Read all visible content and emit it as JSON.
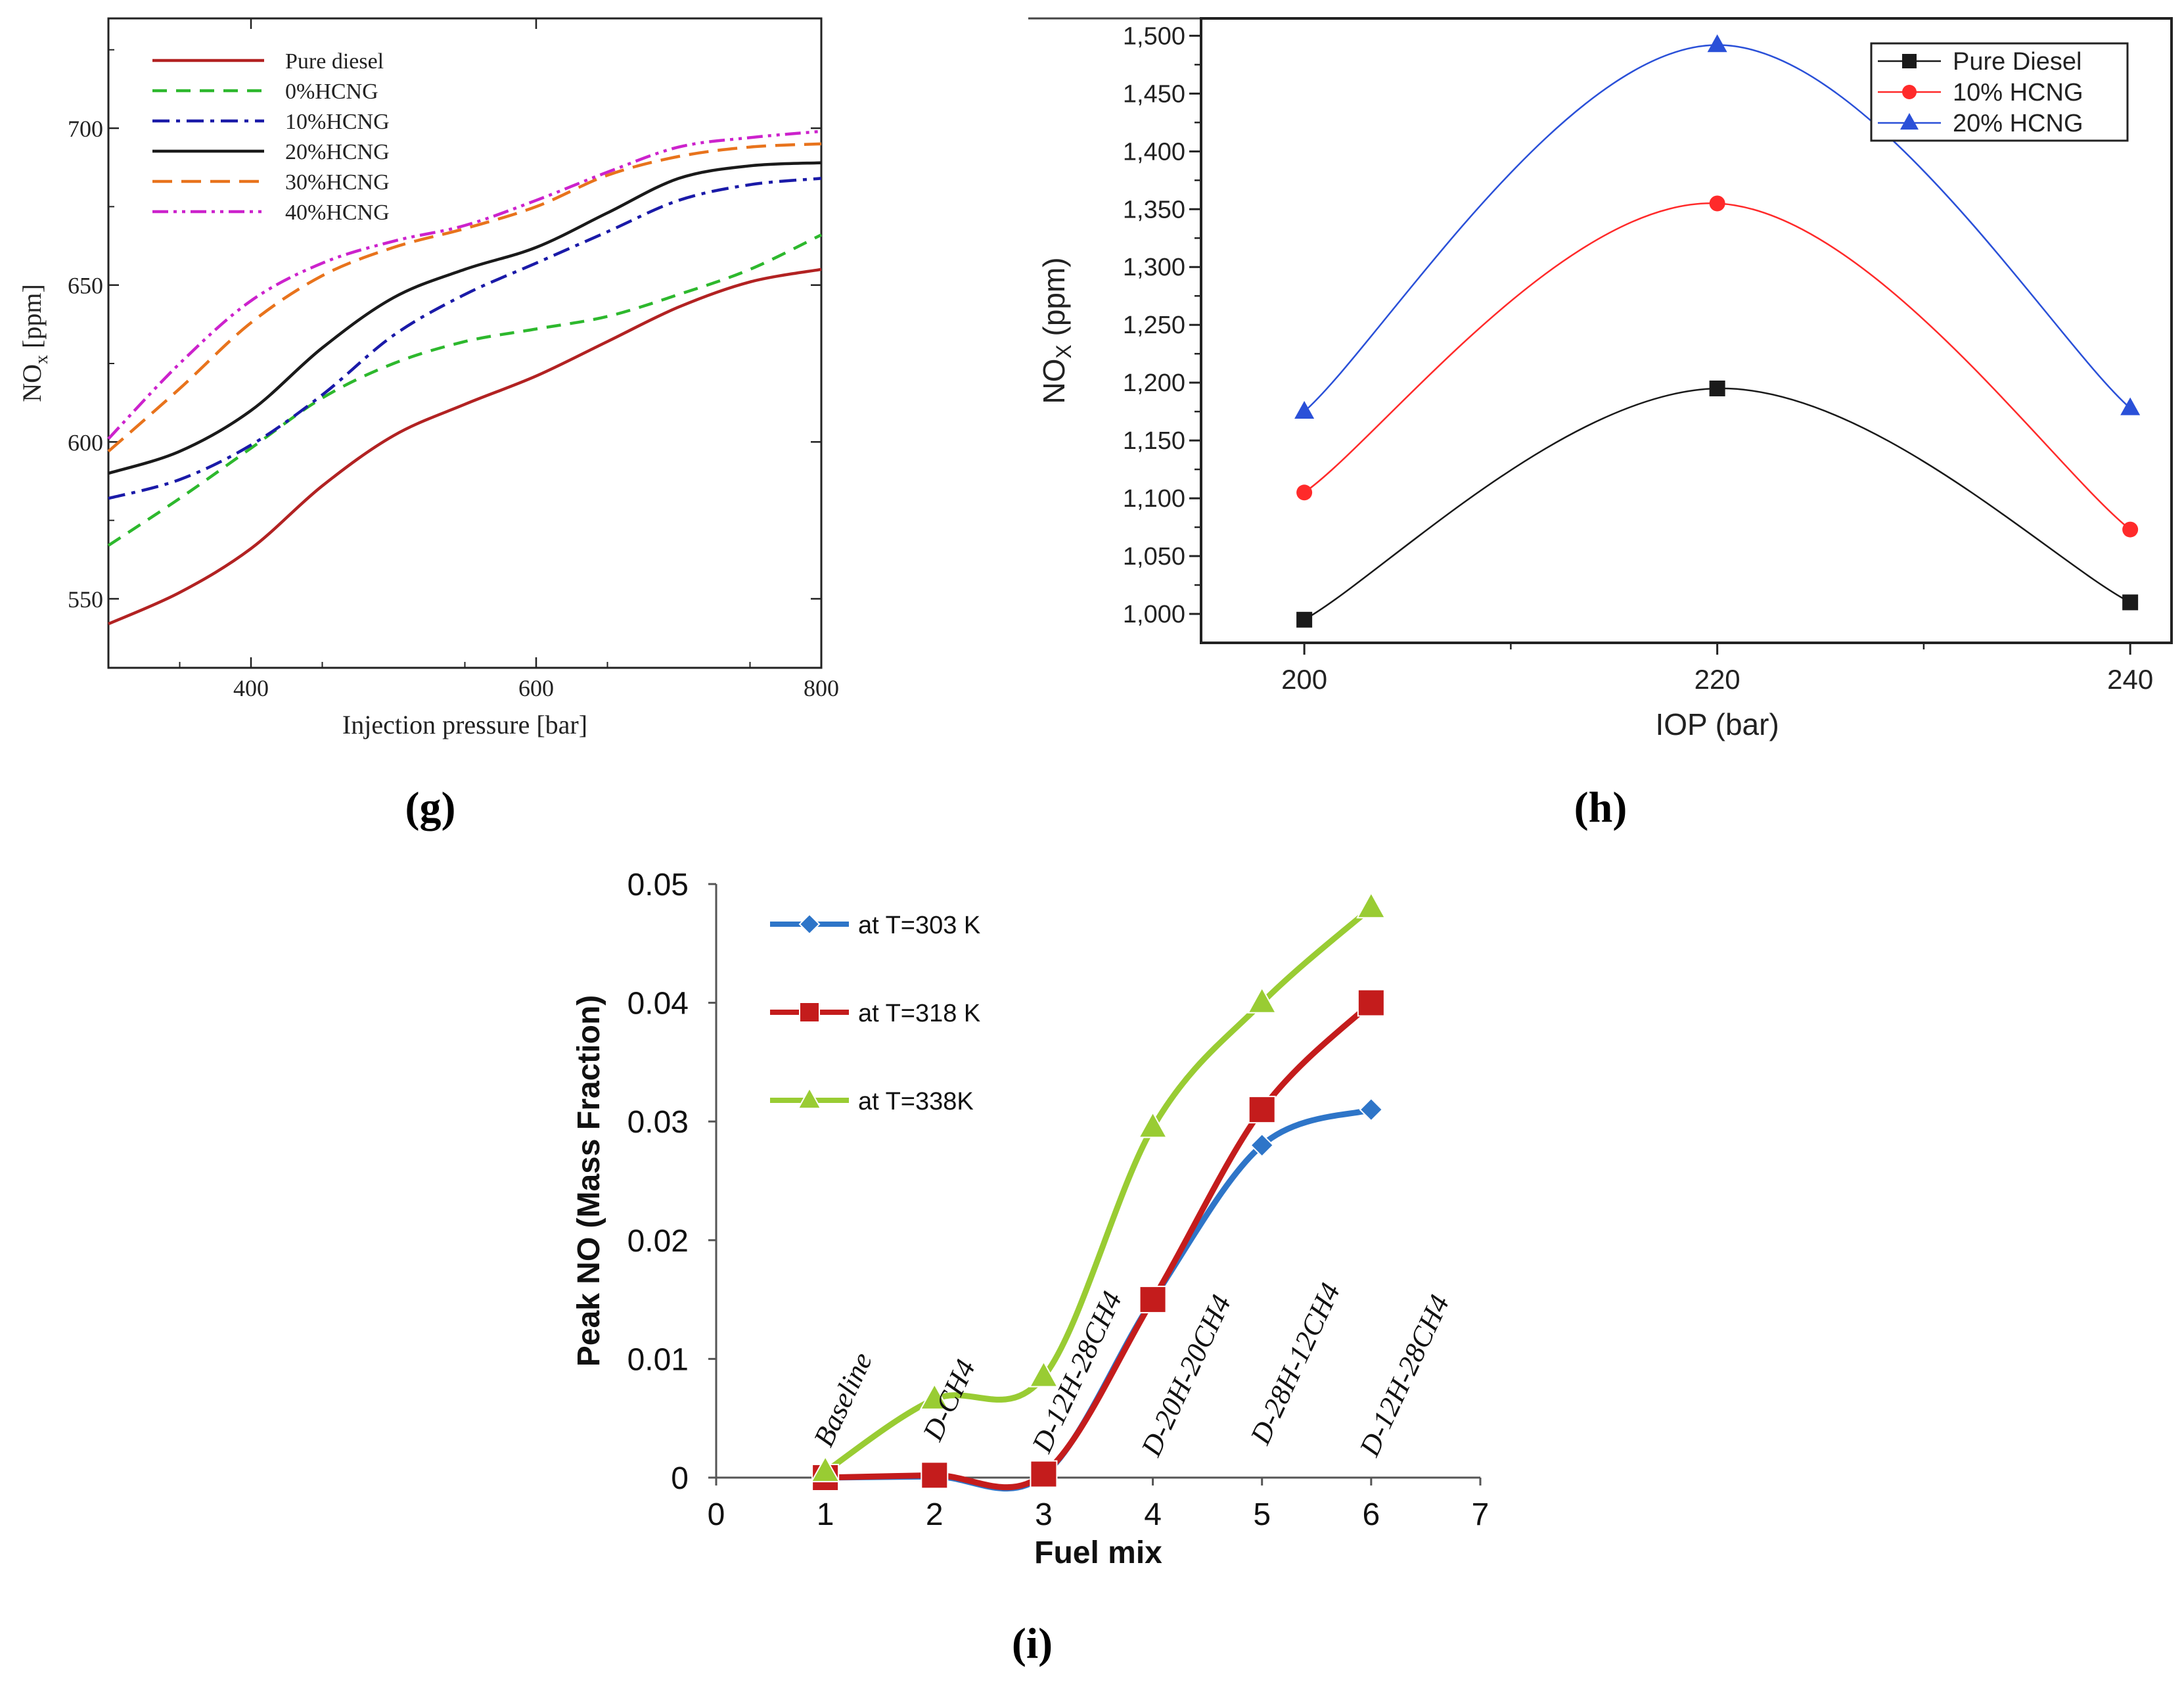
{
  "panel_labels": [
    "(g)",
    "(h)",
    "(i)"
  ],
  "chart_data": [
    {
      "type": "line",
      "panel": "(g)",
      "title": "",
      "xlabel": "Injection pressure [bar]",
      "ylabel": "NOx [ppm]",
      "ylabel_main": "NO",
      "ylabel_sub": "x",
      "ylabel_unit": " [ppm]",
      "xlim": [
        300,
        800
      ],
      "ylim": [
        528,
        735
      ],
      "xticks": [
        400,
        600,
        800
      ],
      "yticks": [
        550,
        600,
        650,
        700
      ],
      "legend_position": "top-left",
      "x": [
        300,
        350,
        400,
        450,
        500,
        550,
        600,
        650,
        700,
        750,
        800
      ],
      "series": [
        {
          "name": "Pure diesel",
          "color": "#b22222",
          "dash": "solid",
          "values": [
            542,
            552,
            566,
            586,
            602,
            612,
            621,
            632,
            643,
            651,
            655
          ]
        },
        {
          "name": "0%HCNG",
          "color": "#2db82d",
          "dash": "dashed",
          "values": [
            567,
            582,
            598,
            614,
            625,
            632,
            636,
            640,
            647,
            655,
            666
          ]
        },
        {
          "name": "10%HCNG",
          "color": "#1a1aa8",
          "dash": "dashdot",
          "values": [
            582,
            588,
            599,
            615,
            634,
            647,
            657,
            667,
            677,
            682,
            684
          ]
        },
        {
          "name": "20%HCNG",
          "color": "#1a1a1a",
          "dash": "solid",
          "values": [
            590,
            597,
            610,
            630,
            646,
            655,
            662,
            673,
            684,
            688,
            689
          ]
        },
        {
          "name": "30%HCNG",
          "color": "#e8731c",
          "dash": "longdash",
          "values": [
            597,
            617,
            638,
            653,
            662,
            668,
            675,
            685,
            691,
            694,
            695
          ]
        },
        {
          "name": "40%HCNG",
          "color": "#cc22cc",
          "dash": "dashdotdot",
          "values": [
            601,
            625,
            645,
            657,
            664,
            669,
            677,
            686,
            694,
            697,
            699
          ]
        }
      ]
    },
    {
      "type": "line",
      "panel": "(h)",
      "title": "",
      "xlabel": "IOP (bar)",
      "ylabel": "NOX (ppm)",
      "ylabel_main": "NO",
      "ylabel_sub": "X",
      "ylabel_unit": " (ppm)",
      "xlim": [
        195,
        242
      ],
      "ylim": [
        975,
        1515
      ],
      "xticks": [
        200,
        220,
        240
      ],
      "yticks": [
        1000,
        1050,
        1100,
        1150,
        1200,
        1250,
        1300,
        1350,
        1400,
        1450,
        1500
      ],
      "ytick_labels": [
        "1,000",
        "1,050",
        "1,100",
        "1,150",
        "1,200",
        "1,250",
        "1,300",
        "1,350",
        "1,400",
        "1,450",
        "1,500"
      ],
      "legend_position": "top-right",
      "x": [
        200,
        220,
        240
      ],
      "series": [
        {
          "name": "Pure Diesel",
          "color": "#1a1a1a",
          "marker": "square",
          "values": [
            995,
            1195,
            1010
          ]
        },
        {
          "name": "10% HCNG",
          "color": "#ff2a2a",
          "marker": "circle",
          "values": [
            1105,
            1355,
            1073
          ]
        },
        {
          "name": "20% HCNG",
          "color": "#2a50d8",
          "marker": "triangle",
          "values": [
            1175,
            1492,
            1178
          ]
        }
      ]
    },
    {
      "type": "line",
      "panel": "(i)",
      "title": "",
      "xlabel": "Fuel mix",
      "ylabel": "Peak NO (Mass Fraction)",
      "xlim": [
        0,
        7
      ],
      "ylim": [
        0,
        0.05
      ],
      "xticks": [
        0,
        1,
        2,
        3,
        4,
        5,
        6,
        7
      ],
      "yticks": [
        0,
        0.01,
        0.02,
        0.03,
        0.04,
        0.05
      ],
      "ytick_labels": [
        "0",
        "0.01",
        "0.02",
        "0.03",
        "0.04",
        "0.05"
      ],
      "legend_position": "top-left",
      "x": [
        1,
        2,
        3,
        4,
        5,
        6
      ],
      "series": [
        {
          "name": "at T=303 K",
          "color": "#2e75c8",
          "marker": "diamond",
          "values": [
            0,
            0.0001,
            0.0002,
            0.015,
            0.028,
            0.031
          ]
        },
        {
          "name": "at T=318 K",
          "color": "#c41c1c",
          "marker": "square",
          "values": [
            0,
            0.0002,
            0.0003,
            0.015,
            0.031,
            0.04
          ]
        },
        {
          "name": "at T=338K",
          "color": "#99cc33",
          "marker": "triangle",
          "values": [
            0.0005,
            0.0066,
            0.0085,
            0.0295,
            0.04,
            0.048
          ]
        }
      ],
      "annotations": [
        {
          "text": "Baseline",
          "x": 1,
          "y": 0.002
        },
        {
          "text": "D-CH4",
          "x": 2,
          "y": 0.0025
        },
        {
          "text": "D-12H-28CH4",
          "x": 3,
          "y": 0.0015
        },
        {
          "text": "D-20H-20CH4",
          "x": 4,
          "y": 0.0012
        },
        {
          "text": "D-28H-12CH4",
          "x": 5,
          "y": 0.0022
        },
        {
          "text": "D-12H-28CH4",
          "x": 6,
          "y": 0.0012
        }
      ]
    }
  ]
}
